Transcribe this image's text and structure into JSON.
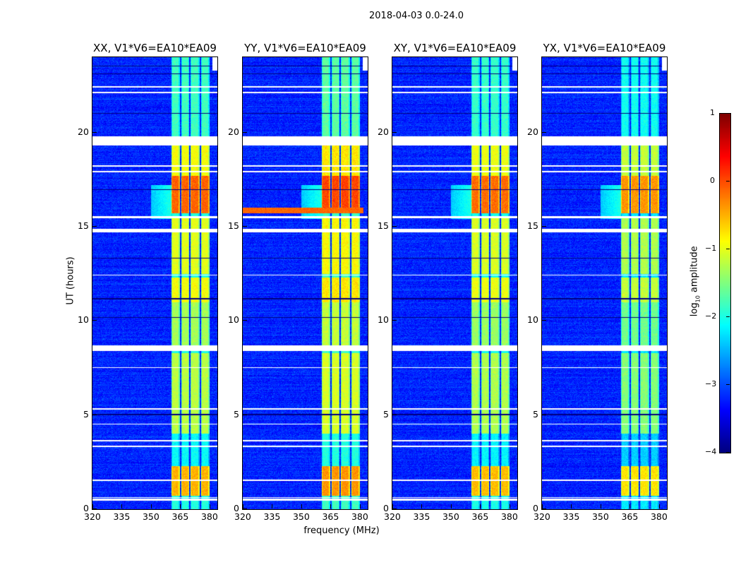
{
  "suptitle": "2018-04-03 0.0-24.0",
  "chart_data": {
    "type": "heatmap",
    "title": "2018-04-03 0.0-24.0",
    "xlabel": "frequency (MHz)",
    "ylabel": "UT (hours)",
    "xlim": [
      320,
      384
    ],
    "ylim": [
      0,
      24
    ],
    "xticks": [
      320,
      335,
      350,
      365,
      380
    ],
    "yticks": [
      0,
      5,
      10,
      15,
      20
    ],
    "panels": [
      {
        "title": "XX, V1*V6=EA10*EA09",
        "offset": 0.0,
        "broadband": []
      },
      {
        "title": "YY, V1*V6=EA10*EA09",
        "offset": 0.15,
        "broadband": [
          [
            15.7,
            16.0,
            -0.2
          ]
        ]
      },
      {
        "title": "XY, V1*V6=EA10*EA09",
        "offset": -0.05,
        "broadband": []
      },
      {
        "title": "YX, V1*V6=EA10*EA09",
        "offset": -0.25,
        "broadband": []
      }
    ],
    "subbands_mhz": [
      [
        360.4,
        364.7
      ],
      [
        365.5,
        369.6
      ],
      [
        370.2,
        374.9
      ],
      [
        375.6,
        380.0
      ]
    ],
    "band_levels": [
      [
        0.7,
        2.3,
        -0.5
      ],
      [
        2.3,
        4.0,
        -2.1
      ],
      [
        4.0,
        8.3,
        -1.2
      ],
      [
        8.7,
        11.0,
        -1.3
      ],
      [
        11.0,
        12.3,
        -0.9
      ],
      [
        12.5,
        15.5,
        -1.0
      ],
      [
        15.7,
        17.7,
        -0.1
      ],
      [
        17.7,
        19.3,
        -0.9
      ],
      [
        19.8,
        24.0,
        -1.8
      ]
    ],
    "background_level": -3.2,
    "flagged_hours": [
      [
        19.3,
        19.8
      ],
      [
        8.4,
        8.7
      ],
      [
        14.7,
        14.9
      ],
      [
        15.45,
        15.55
      ],
      [
        0.45,
        0.55
      ],
      [
        1.5,
        1.58
      ],
      [
        3.3,
        3.38
      ],
      [
        3.6,
        3.66
      ],
      [
        22.4,
        22.48
      ],
      [
        22.1,
        22.15
      ],
      [
        18.2,
        18.25
      ],
      [
        17.9,
        17.95
      ],
      [
        12.4,
        12.45
      ],
      [
        5.3,
        5.35
      ],
      [
        7.5,
        7.55
      ],
      [
        4.5,
        4.55
      ],
      [
        0.6,
        0.65
      ]
    ],
    "dark_hours": [
      [
        23.5,
        23.55
      ],
      [
        23.1,
        23.15
      ],
      [
        21.0,
        21.05
      ],
      [
        11.15,
        11.2
      ],
      [
        10.15,
        10.2
      ],
      [
        5.0,
        5.05
      ],
      [
        16.95,
        17.0
      ],
      [
        13.3,
        13.35
      ]
    ],
    "colorbar": {
      "label": "log10 amplitude",
      "label_main": "log",
      "label_sub": "10",
      "label_tail": " amplitude",
      "ticks": [
        1,
        0,
        -1,
        -2,
        -3,
        -4
      ],
      "range": [
        -4,
        1
      ],
      "cmap": "jet"
    }
  }
}
